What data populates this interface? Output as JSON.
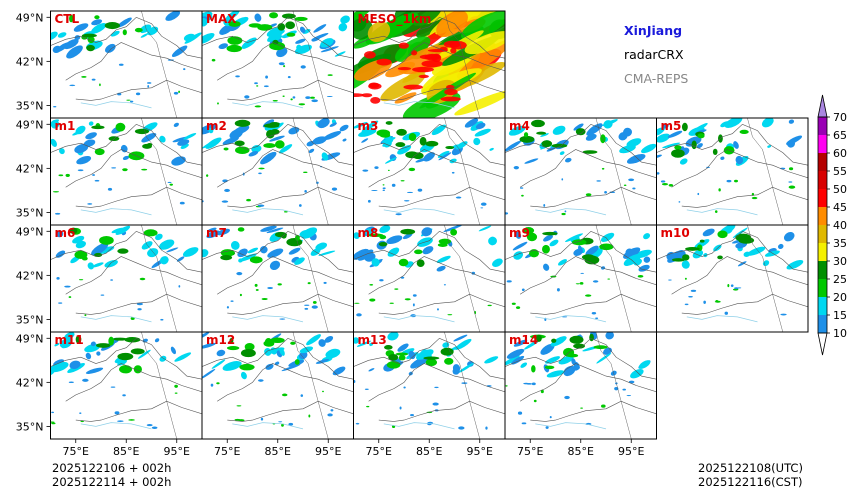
{
  "chart_data": {
    "type": "panel-map-grid",
    "region_title": "XinJiang",
    "product": "radarCRX",
    "system": "CMA-REPS",
    "colors": {
      "region_title": "#1a1adb",
      "product": "#000000",
      "system": "#888888",
      "panel_label": "#e00000"
    },
    "panels": [
      {
        "label": "CTL",
        "intensity": 0.9
      },
      {
        "label": "MAX",
        "intensity": 1.25
      },
      {
        "label": "MESO_1km",
        "intensity": 2.6
      },
      {
        "label": "m1",
        "intensity": 0.85
      },
      {
        "label": "m2",
        "intensity": 1.0
      },
      {
        "label": "m3",
        "intensity": 1.05
      },
      {
        "label": "m4",
        "intensity": 0.9
      },
      {
        "label": "m5",
        "intensity": 0.95
      },
      {
        "label": "m6",
        "intensity": 0.8
      },
      {
        "label": "m7",
        "intensity": 0.9
      },
      {
        "label": "m8",
        "intensity": 1.0
      },
      {
        "label": "m9",
        "intensity": 0.95
      },
      {
        "label": "m10",
        "intensity": 0.85
      },
      {
        "label": "m11",
        "intensity": 0.9
      },
      {
        "label": "m12",
        "intensity": 0.95
      },
      {
        "label": "m13",
        "intensity": 1.0
      },
      {
        "label": "m14",
        "intensity": 1.05
      }
    ],
    "lat_ticks": [
      "49°N",
      "42°N",
      "35°N"
    ],
    "lon_ticks": [
      "75°E",
      "85°E",
      "95°E"
    ],
    "lat_values": [
      49,
      42,
      35
    ],
    "lon_values": [
      75,
      85,
      95
    ],
    "lon_range": [
      70,
      100
    ],
    "lat_range": [
      33,
      50
    ],
    "colorbar": {
      "levels": [
        "10",
        "15",
        "20",
        "25",
        "30",
        "35",
        "40",
        "45",
        "50",
        "55",
        "60",
        "65",
        "70"
      ],
      "colors": [
        "#1e90e8",
        "#00d8f0",
        "#00c800",
        "#008f00",
        "#f5f000",
        "#e0b800",
        "#ff8c00",
        "#ff0000",
        "#d80000",
        "#b40000",
        "#ff00f0",
        "#9900b4",
        "#a986e0"
      ],
      "extend": "both"
    },
    "init_lines": [
      "2025122106  +  002h",
      "2025122114  +  002h"
    ],
    "valid_lines": [
      "2025122108(UTC)",
      "2025122116(CST)"
    ]
  }
}
